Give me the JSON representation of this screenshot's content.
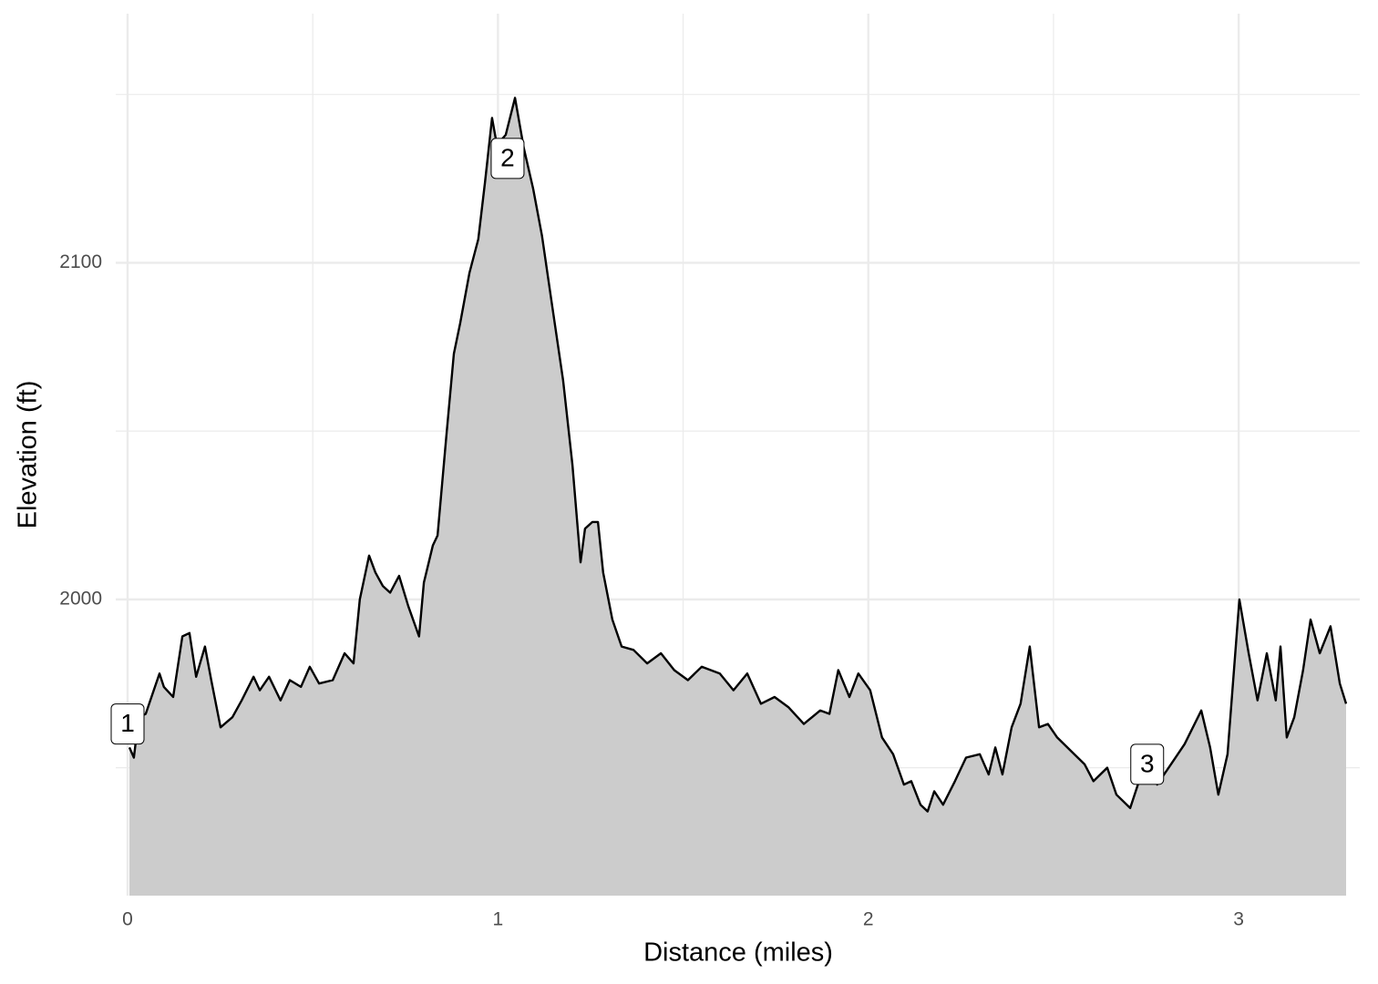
{
  "chart_data": {
    "type": "area",
    "x_label": "Distance (miles)",
    "y_label": "Elevation (ft)",
    "xlim": [
      -0.032,
      3.327
    ],
    "ylim": [
      1912,
      2174
    ],
    "xticks": [
      0,
      1,
      2,
      3
    ],
    "yticks": [
      2000,
      2100
    ],
    "x_minor_ticks": [
      0.5,
      1.5,
      2.5
    ],
    "y_minor_ticks": [
      1950,
      2050,
      2150
    ],
    "grid": true,
    "fill_color": "#cccccc",
    "line_color": "#000000",
    "x": [
      0.005,
      0.017,
      0.03,
      0.049,
      0.086,
      0.098,
      0.123,
      0.148,
      0.167,
      0.185,
      0.209,
      0.226,
      0.251,
      0.283,
      0.308,
      0.34,
      0.357,
      0.382,
      0.413,
      0.438,
      0.468,
      0.492,
      0.517,
      0.554,
      0.586,
      0.61,
      0.627,
      0.652,
      0.669,
      0.689,
      0.709,
      0.733,
      0.758,
      0.787,
      0.8,
      0.824,
      0.837,
      0.861,
      0.881,
      0.898,
      0.923,
      0.947,
      0.965,
      0.984,
      0.997,
      1.021,
      1.046,
      1.07,
      1.095,
      1.119,
      1.144,
      1.176,
      1.201,
      1.223,
      1.235,
      1.255,
      1.27,
      1.284,
      1.309,
      1.334,
      1.366,
      1.403,
      1.44,
      1.476,
      1.513,
      1.55,
      1.599,
      1.636,
      1.673,
      1.71,
      1.747,
      1.784,
      1.826,
      1.87,
      1.895,
      1.919,
      1.949,
      1.973,
      2.005,
      2.037,
      2.067,
      2.096,
      2.116,
      2.141,
      2.16,
      2.178,
      2.202,
      2.234,
      2.264,
      2.301,
      2.325,
      2.343,
      2.362,
      2.387,
      2.411,
      2.436,
      2.461,
      2.485,
      2.51,
      2.547,
      2.584,
      2.608,
      2.645,
      2.67,
      2.707,
      2.731,
      2.756,
      2.78,
      2.817,
      2.854,
      2.899,
      2.923,
      2.945,
      2.97,
      3.002,
      3.027,
      3.051,
      3.076,
      3.1,
      3.113,
      3.13,
      3.15,
      3.174,
      3.194,
      3.219,
      3.248,
      3.273,
      3.29
    ],
    "values": [
      1956,
      1953,
      1965,
      1966,
      1978,
      1974,
      1971,
      1989,
      1990,
      1977,
      1986,
      1976,
      1962,
      1965,
      1970,
      1977,
      1973,
      1977,
      1970,
      1976,
      1974,
      1980,
      1975,
      1976,
      1984,
      1981,
      2000,
      2013,
      2008,
      2004,
      2002,
      2007,
      1998,
      1989,
      2005,
      2016,
      2019,
      2049,
      2073,
      2082,
      2097,
      2107,
      2124,
      2143,
      2135,
      2138,
      2149,
      2134,
      2122,
      2108,
      2089,
      2065,
      2040,
      2011,
      2021,
      2023,
      2023,
      2008,
      1994,
      1986,
      1985,
      1981,
      1984,
      1979,
      1976,
      1980,
      1978,
      1973,
      1978,
      1969,
      1971,
      1968,
      1963,
      1967,
      1966,
      1979,
      1971,
      1978,
      1973,
      1959,
      1954,
      1945,
      1946,
      1939,
      1937,
      1943,
      1939,
      1946,
      1953,
      1954,
      1948,
      1956,
      1948,
      1962,
      1969,
      1986,
      1962,
      1963,
      1959,
      1955,
      1951,
      1946,
      1950,
      1942,
      1938,
      1946,
      1952,
      1945,
      1951,
      1957,
      1967,
      1956,
      1942,
      1954,
      2000,
      1984,
      1970,
      1984,
      1970,
      1986,
      1959,
      1965,
      1979,
      1994,
      1984,
      1992,
      1975,
      1969
    ],
    "annotations": [
      {
        "label": "1",
        "x": 0,
        "y": 1963
      },
      {
        "label": "2",
        "x": 1.026,
        "y": 2131
      },
      {
        "label": "3",
        "x": 2.753,
        "y": 1951
      }
    ]
  }
}
